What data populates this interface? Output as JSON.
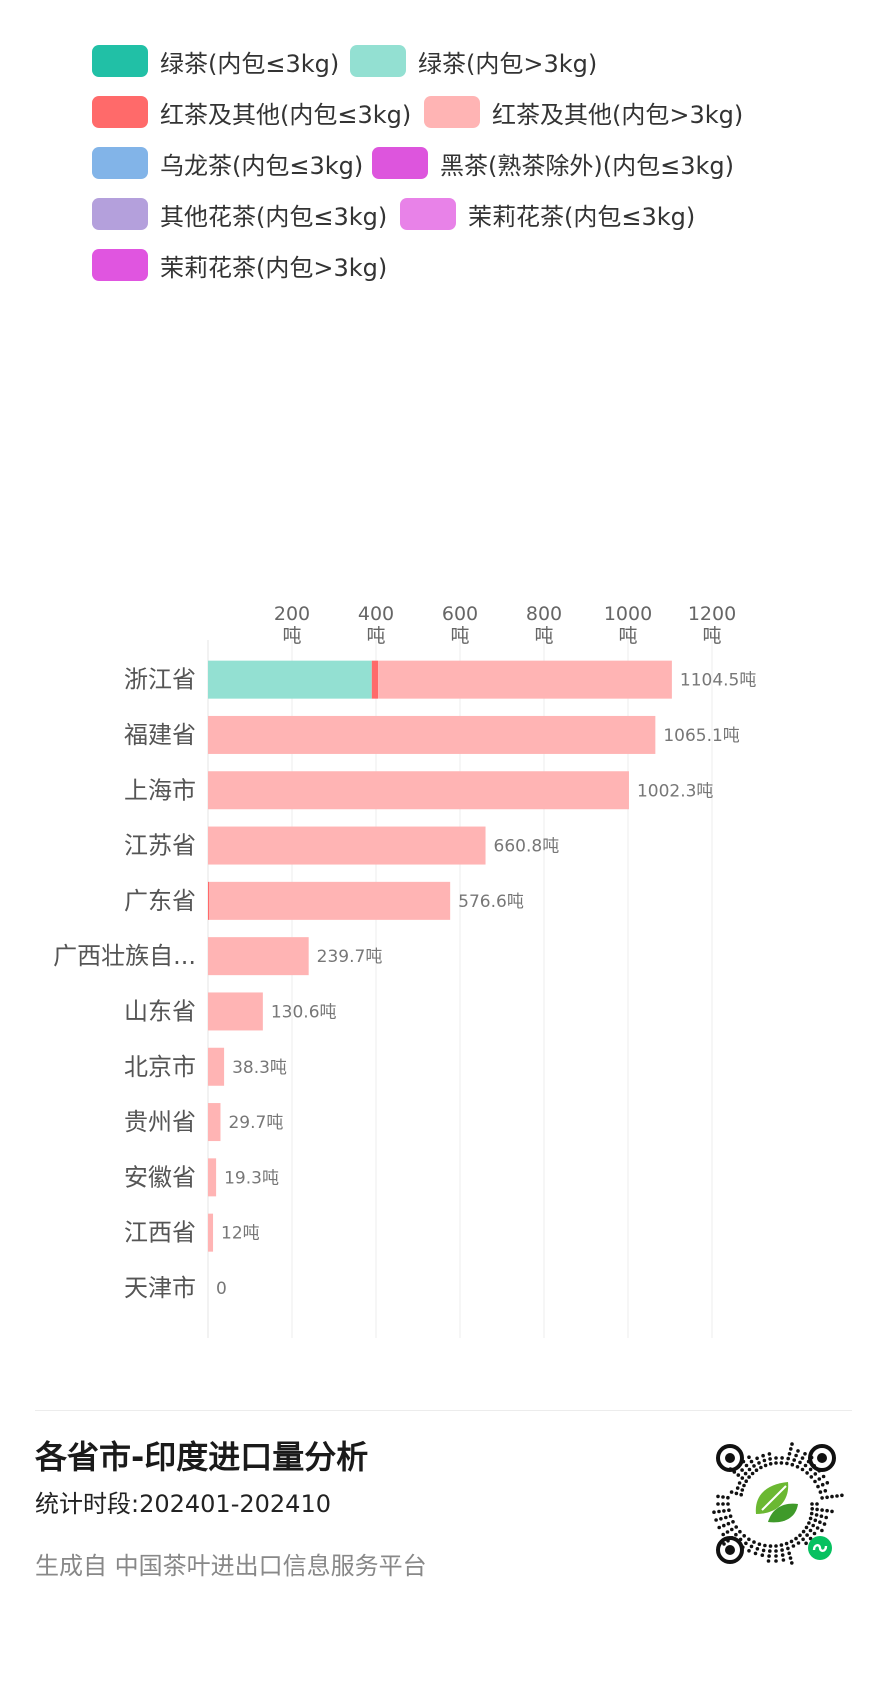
{
  "legend": [
    {
      "label": "绿茶(内包≤3kg)",
      "color": "#21c0a6"
    },
    {
      "label": "绿茶(内包>3kg)",
      "color": "#93e0d2"
    },
    {
      "label": "红茶及其他(内包≤3kg)",
      "color": "#ff6a6a"
    },
    {
      "label": "红茶及其他(内包>3kg)",
      "color": "#ffb4b4"
    },
    {
      "label": "乌龙茶(内包≤3kg)",
      "color": "#82b4e8"
    },
    {
      "label": "黑茶(熟茶除外)(内包≤3kg)",
      "color": "#dd55dd"
    },
    {
      "label": "其他花茶(内包≤3kg)",
      "color": "#b4a0dc"
    },
    {
      "label": "茉莉花茶(内包≤3kg)",
      "color": "#e882e8"
    },
    {
      "label": "茉莉花茶(内包>3kg)",
      "color": "#e055e0"
    }
  ],
  "chart_data": {
    "type": "bar",
    "orientation": "horizontal",
    "stacked": true,
    "categories": [
      "浙江省",
      "福建省",
      "上海市",
      "江苏省",
      "广东省",
      "广西壮族自...",
      "山东省",
      "北京市",
      "贵州省",
      "安徽省",
      "江西省",
      "天津市"
    ],
    "series": [
      {
        "name": "绿茶(内包>3kg)",
        "color": "#93e0d2",
        "values": [
          390,
          0,
          0,
          0,
          0,
          0,
          0,
          0,
          0,
          0,
          0,
          0
        ]
      },
      {
        "name": "红茶及其他(内包≤3kg)",
        "color": "#ff6a6a",
        "values": [
          15,
          0,
          0,
          0,
          3,
          0,
          0,
          0,
          0,
          0,
          0,
          0
        ]
      },
      {
        "name": "红茶及其他(内包>3kg)",
        "color": "#ffb4b4",
        "values": [
          699.5,
          1065.1,
          1002.3,
          660.8,
          573.6,
          239.7,
          130.6,
          38.3,
          29.7,
          19.3,
          12,
          0
        ]
      }
    ],
    "totals": [
      "1104.5吨",
      "1065.1吨",
      "1002.3吨",
      "660.8吨",
      "576.6吨",
      "239.7吨",
      "130.6吨",
      "38.3吨",
      "29.7吨",
      "19.3吨",
      "12吨",
      "0"
    ],
    "x_ticks": [
      200,
      400,
      600,
      800,
      1000,
      1200
    ],
    "x_unit": "吨",
    "xlim": [
      0,
      1300
    ],
    "xaxis_position": "top",
    "grid": true
  },
  "footer": {
    "title": "各省市-印度进口量分析",
    "period": "统计时段:202401-202410",
    "source": "生成自 中国茶叶进出口信息服务平台"
  }
}
